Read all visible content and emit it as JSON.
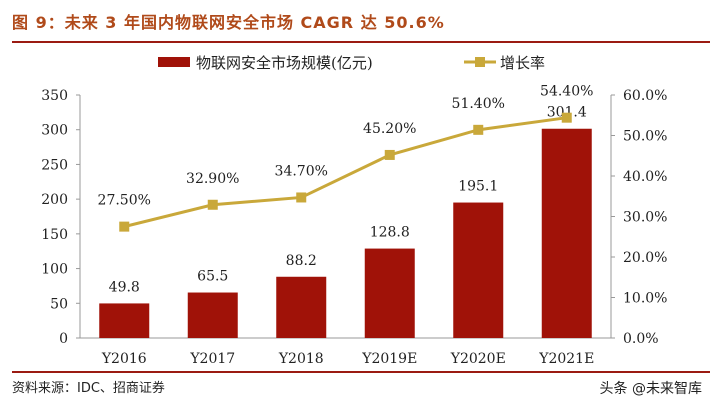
{
  "title": "图 9：未来 3 年国内物联网安全市场 CAGR 达 50.6%",
  "source": "资料来源：IDC、招商证券",
  "watermark": "头条 @未来智库",
  "chart_data": {
    "type": "bar+line",
    "categories": [
      "Y2016",
      "Y2017",
      "Y2018",
      "Y2019E",
      "Y2020E",
      "Y2021E"
    ],
    "series": [
      {
        "name": "物联网安全市场规模(亿元)",
        "type": "bar",
        "axis": "left",
        "color": "#a01208",
        "values": [
          49.8,
          65.5,
          88.2,
          128.8,
          195.1,
          301.4
        ],
        "labels": [
          "49.8",
          "65.5",
          "88.2",
          "128.8",
          "195.1",
          "301.4"
        ]
      },
      {
        "name": "增长率",
        "type": "line",
        "axis": "right",
        "color": "#c9a83a",
        "values": [
          27.5,
          32.9,
          34.7,
          45.2,
          51.4,
          54.4
        ],
        "labels": [
          "27.50%",
          "32.90%",
          "34.70%",
          "45.20%",
          "51.40%",
          "54.40%"
        ]
      }
    ],
    "left_axis": {
      "range": [
        0,
        350
      ],
      "ticks": [
        "0",
        "50",
        "100",
        "150",
        "200",
        "250",
        "300",
        "350"
      ]
    },
    "right_axis": {
      "range": [
        0,
        60
      ],
      "ticks": [
        "0.0%",
        "10.0%",
        "20.0%",
        "30.0%",
        "40.0%",
        "50.0%",
        "60.0%"
      ]
    },
    "legend": "top",
    "grid": false
  }
}
